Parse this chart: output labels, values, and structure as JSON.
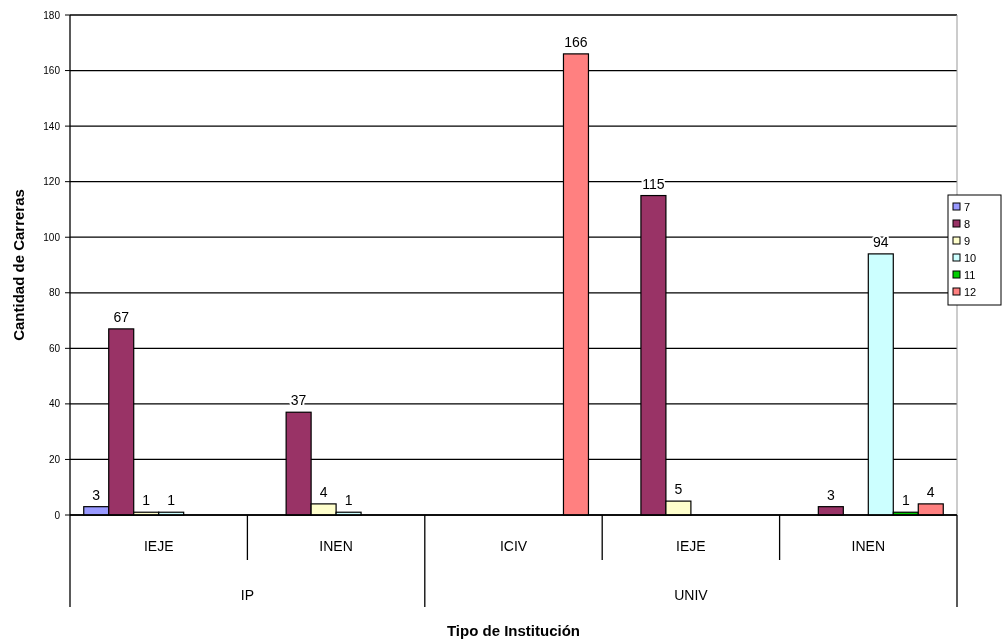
{
  "chart_data": {
    "type": "bar",
    "xlabel": "Tipo de Institución",
    "ylabel": "Cantidad de Carreras",
    "categories": [
      "IEJE",
      "INEN",
      "ICIV",
      "IEJE",
      "INEN"
    ],
    "annotations": [
      "IP",
      "UNIV"
    ],
    "series": [
      {
        "name": "7",
        "color": "#9999ff",
        "values": [
          3,
          null,
          null,
          null,
          null
        ]
      },
      {
        "name": "8",
        "color": "#993366",
        "values": [
          67,
          37,
          null,
          115,
          3
        ]
      },
      {
        "name": "9",
        "color": "#ffffcc",
        "values": [
          1,
          4,
          null,
          5,
          null
        ]
      },
      {
        "name": "10",
        "color": "#ccffff",
        "values": [
          1,
          1,
          null,
          null,
          94
        ]
      },
      {
        "name": "11",
        "color": "#00cc00",
        "values": [
          null,
          null,
          null,
          null,
          1
        ]
      },
      {
        "name": "12",
        "color": "#ff8080",
        "values": [
          null,
          null,
          166,
          null,
          4
        ]
      }
    ],
    "ylim": [
      0,
      180
    ],
    "yticks": [
      0,
      20,
      40,
      60,
      80,
      100,
      120,
      140,
      160,
      180
    ],
    "grid": "y",
    "legend": "right",
    "data_labels": true
  }
}
